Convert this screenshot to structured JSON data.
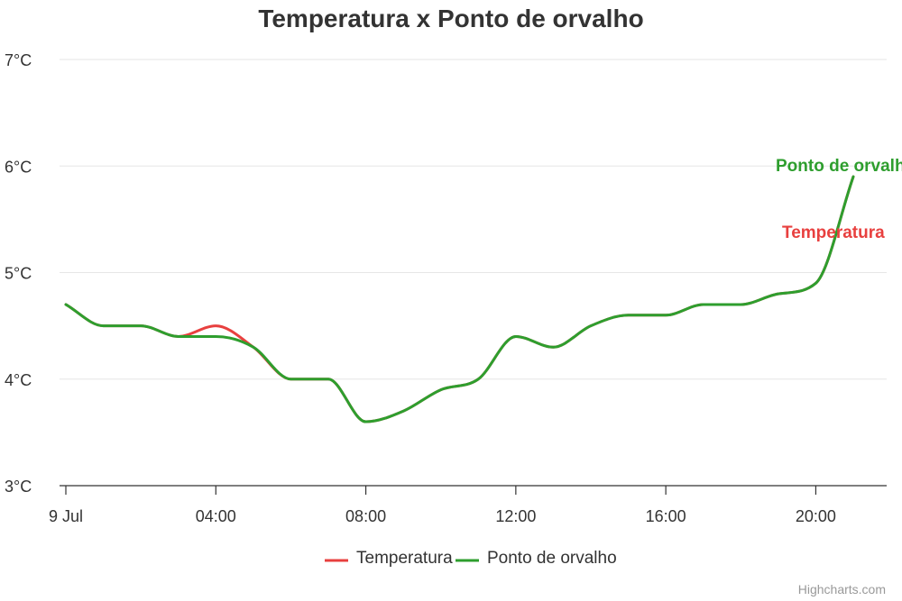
{
  "chart_data": {
    "type": "line",
    "title": "Temperatura x Ponto de orvalho",
    "y_unit": "°C",
    "ylim": [
      3,
      7
    ],
    "y_ticks": [
      {
        "value": 3,
        "label": "3°C"
      },
      {
        "value": 4,
        "label": "4°C"
      },
      {
        "value": 5,
        "label": "5°C"
      },
      {
        "value": 6,
        "label": "6°C"
      },
      {
        "value": 7,
        "label": "7°C"
      }
    ],
    "x_unit": "hours",
    "xlim": [
      0,
      21
    ],
    "x_ticks": [
      {
        "value": 0,
        "label": "9 Jul"
      },
      {
        "value": 4,
        "label": "04:00"
      },
      {
        "value": 8,
        "label": "08:00"
      },
      {
        "value": 12,
        "label": "12:00"
      },
      {
        "value": 16,
        "label": "16:00"
      },
      {
        "value": 20,
        "label": "20:00"
      }
    ],
    "x": [
      0,
      1,
      2,
      3,
      4,
      5,
      6,
      7,
      8,
      9,
      10,
      11,
      12,
      13,
      14,
      15,
      16,
      17,
      18,
      19,
      20,
      21
    ],
    "series": [
      {
        "name": "Temperatura",
        "color": "#e8403f",
        "values": [
          4.7,
          4.5,
          4.5,
          4.4,
          4.5,
          4.3,
          4.0,
          4.0,
          3.6,
          3.7,
          3.9,
          4.0,
          4.4,
          4.3,
          4.5,
          4.6,
          4.6,
          4.7,
          4.7,
          4.8,
          4.9,
          5.9
        ]
      },
      {
        "name": "Ponto de orvalho",
        "color": "#2e9e2e",
        "values": [
          4.7,
          4.5,
          4.5,
          4.4,
          4.4,
          4.3,
          4.0,
          4.0,
          3.6,
          3.7,
          3.9,
          4.0,
          4.4,
          4.3,
          4.5,
          4.6,
          4.6,
          4.7,
          4.7,
          4.8,
          4.9,
          5.9
        ]
      }
    ],
    "series_labels": [
      {
        "text": "Ponto de orvalho",
        "color": "#2e9e2e"
      },
      {
        "text": "Temperatura",
        "color": "#e8403f"
      }
    ],
    "grid": true,
    "legend": "bottom-center",
    "credits": "Highcharts.com"
  }
}
